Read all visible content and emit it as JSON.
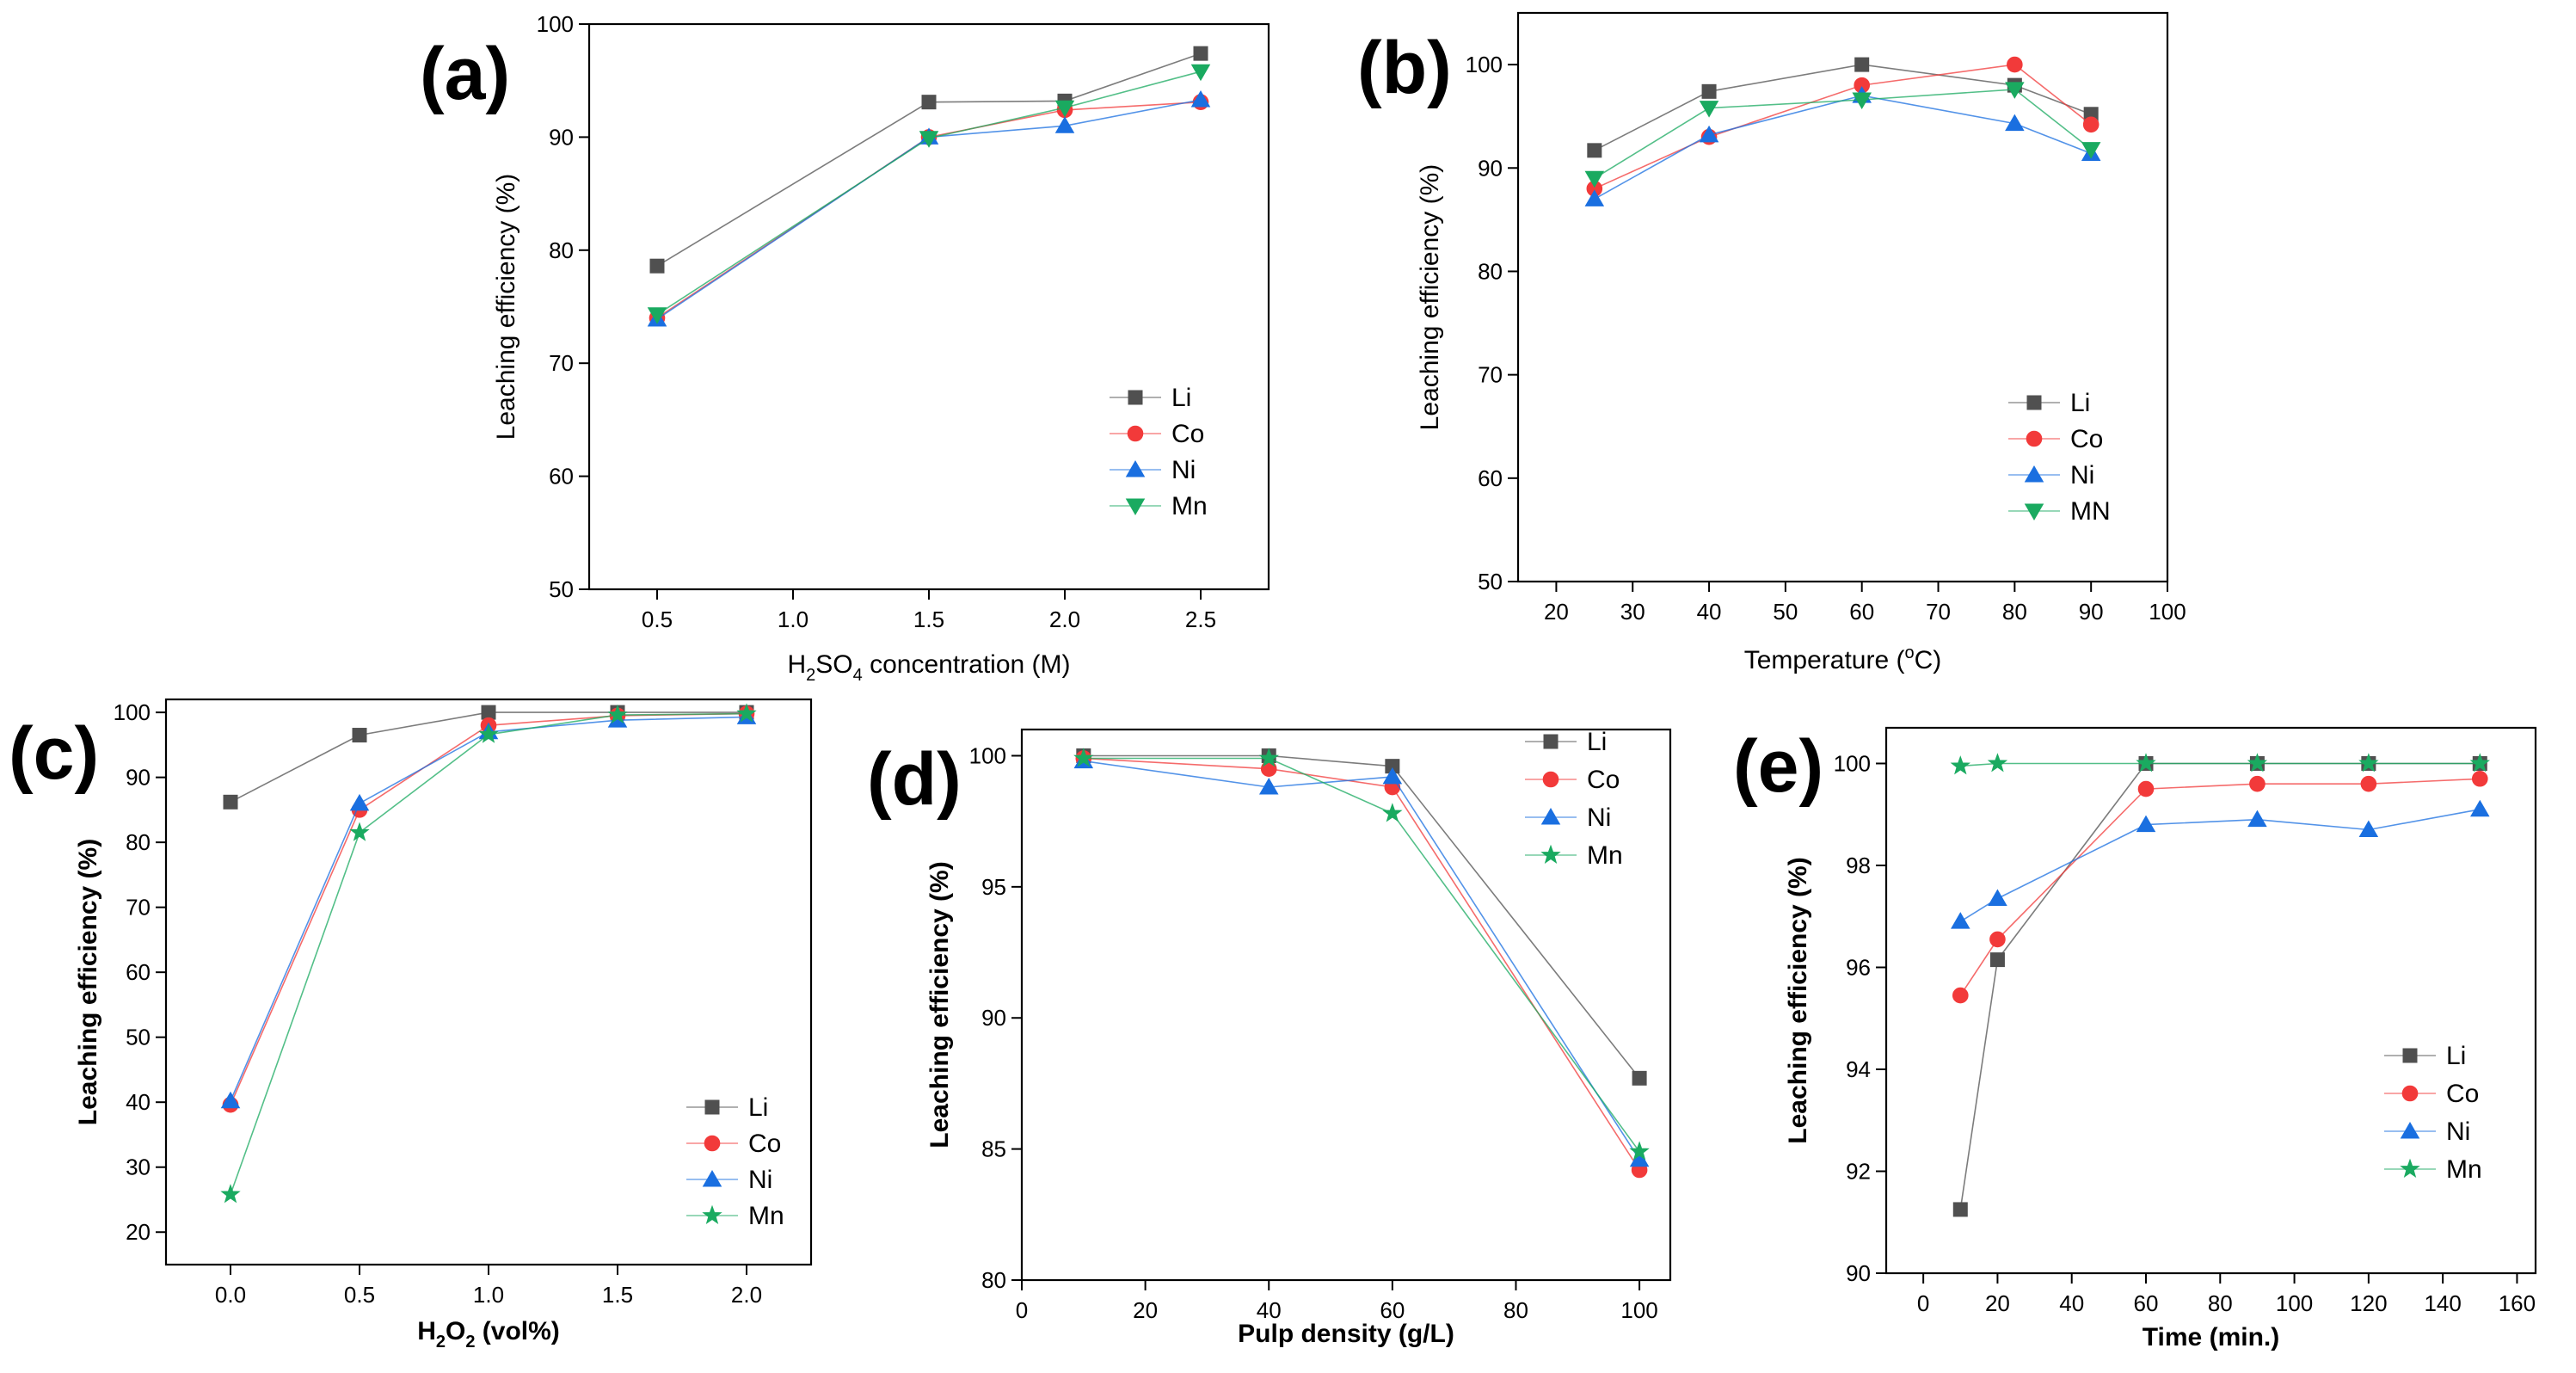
{
  "figure": {
    "title": ""
  },
  "colors": {
    "Li": "#505050",
    "Co": "#f23a3a",
    "Ni": "#1a6fe0",
    "Mn": "#1aaa60"
  },
  "chart_data": [
    {
      "type": "line",
      "panel_label": "(a)",
      "xlabel": "H2SO4 concentration (M)",
      "xlabel_parts": {
        "pre": "H",
        "sub1": "2",
        "mid": "SO",
        "sub2": "4",
        "post": " concentration (M)"
      },
      "ylabel": "Leaching efficiency (%)",
      "xlim": [
        0.25,
        2.75
      ],
      "ylim": [
        50,
        100
      ],
      "xticks": [
        0.5,
        1.0,
        1.5,
        2.0,
        2.5
      ],
      "xtick_labels": [
        "0.5",
        "1.0",
        "1.5",
        "2.0",
        "2.5"
      ],
      "yticks": [
        50,
        60,
        70,
        80,
        90,
        100
      ],
      "ytick_labels": [
        "50",
        "60",
        "70",
        "80",
        "90",
        "100"
      ],
      "legend_position": "lower-right",
      "x": [
        0.5,
        1.5,
        2.0,
        2.5
      ],
      "series": [
        {
          "name": "Li",
          "marker": "square",
          "values": [
            78.6,
            93.1,
            93.2,
            97.4
          ]
        },
        {
          "name": "Co",
          "marker": "circle",
          "values": [
            74.0,
            90.0,
            92.4,
            93.1
          ]
        },
        {
          "name": "Ni",
          "marker": "triangle",
          "values": [
            73.9,
            90.0,
            91.0,
            93.3
          ]
        },
        {
          "name": "Mn",
          "marker": "triangle-down",
          "values": [
            74.3,
            89.9,
            92.6,
            95.8
          ]
        }
      ]
    },
    {
      "type": "line",
      "panel_label": "(b)",
      "xlabel": "Temperature (oC)",
      "xlabel_parts": {
        "pre": "Temperature (",
        "sup": "o",
        "post": "C)"
      },
      "ylabel": "Leaching efficiency (%)",
      "xlim": [
        15,
        100
      ],
      "ylim": [
        50,
        105
      ],
      "xticks": [
        20,
        30,
        40,
        50,
        60,
        70,
        80,
        90,
        100
      ],
      "xtick_labels": [
        "20",
        "30",
        "40",
        "50",
        "60",
        "70",
        "80",
        "90",
        "100"
      ],
      "yticks": [
        50,
        60,
        70,
        80,
        90,
        100
      ],
      "ytick_labels": [
        "50",
        "60",
        "70",
        "80",
        "90",
        "100"
      ],
      "legend_position": "lower-right",
      "x": [
        25,
        40,
        60,
        80,
        90
      ],
      "series": [
        {
          "name": "Li",
          "marker": "square",
          "values": [
            91.7,
            97.4,
            100.0,
            98.0,
            95.2
          ]
        },
        {
          "name": "Co",
          "marker": "circle",
          "values": [
            88.0,
            93.0,
            98.0,
            100.0,
            94.2
          ]
        },
        {
          "name": "Ni",
          "marker": "triangle",
          "values": [
            87.0,
            93.2,
            97.0,
            94.3,
            91.4
          ]
        },
        {
          "name": "MN",
          "marker": "triangle-down",
          "values": [
            89.0,
            95.8,
            96.6,
            97.6,
            91.8
          ]
        }
      ]
    },
    {
      "type": "line",
      "panel_label": "(c)",
      "xlabel": "H2O2 (vol%)",
      "xlabel_parts": {
        "pre": "H",
        "sub1": "2",
        "mid": "O",
        "sub2": "2",
        "post": " (vol%)"
      },
      "ylabel": "Leaching efficiency (%)",
      "bold_labels": true,
      "xlim": [
        -0.25,
        2.25
      ],
      "ylim": [
        15,
        102
      ],
      "xticks": [
        0.0,
        0.5,
        1.0,
        1.5,
        2.0
      ],
      "xtick_labels": [
        "0.0",
        "0.5",
        "1.0",
        "1.5",
        "2.0"
      ],
      "yticks": [
        20,
        30,
        40,
        50,
        60,
        70,
        80,
        90,
        100
      ],
      "ytick_labels": [
        "20",
        "30",
        "40",
        "50",
        "60",
        "70",
        "80",
        "90",
        "100"
      ],
      "legend_position": "lower-right",
      "x": [
        0.0,
        0.5,
        1.0,
        1.5,
        2.0
      ],
      "series": [
        {
          "name": "Li",
          "marker": "square",
          "values": [
            86.2,
            96.5,
            100.0,
            100.0,
            100.0
          ]
        },
        {
          "name": "Co",
          "marker": "circle",
          "values": [
            39.6,
            85.0,
            98.0,
            99.5,
            99.8
          ]
        },
        {
          "name": "Ni",
          "marker": "triangle",
          "values": [
            40.2,
            86.0,
            97.0,
            98.8,
            99.3
          ]
        },
        {
          "name": "Mn",
          "marker": "star",
          "values": [
            25.8,
            81.5,
            96.6,
            99.6,
            99.8
          ]
        }
      ]
    },
    {
      "type": "line",
      "panel_label": "(d)",
      "xlabel": "Pulp density (g/L)",
      "ylabel": "Leaching efficiency (%)",
      "bold_labels": true,
      "xlim": [
        0,
        105
      ],
      "ylim": [
        80,
        101
      ],
      "xticks": [
        0,
        20,
        40,
        60,
        80,
        100
      ],
      "xtick_labels": [
        "0",
        "20",
        "40",
        "60",
        "80",
        "100"
      ],
      "yticks": [
        80,
        85,
        90,
        95,
        100
      ],
      "ytick_labels": [
        "80",
        "85",
        "90",
        "95",
        "100"
      ],
      "legend_position": "upper-right",
      "x": [
        10,
        40,
        60,
        100
      ],
      "series": [
        {
          "name": "Li",
          "marker": "square",
          "values": [
            100.0,
            100.0,
            99.6,
            87.7
          ]
        },
        {
          "name": "Co",
          "marker": "circle",
          "values": [
            99.9,
            99.5,
            98.8,
            84.2
          ]
        },
        {
          "name": "Ni",
          "marker": "triangle",
          "values": [
            99.8,
            98.8,
            99.2,
            84.6
          ]
        },
        {
          "name": "Mn",
          "marker": "star",
          "values": [
            99.9,
            99.9,
            97.8,
            84.9
          ]
        }
      ]
    },
    {
      "type": "line",
      "panel_label": "(e)",
      "xlabel": "Time (min.)",
      "ylabel": "Leaching efficiency (%)",
      "bold_labels": true,
      "xlim": [
        -10,
        165
      ],
      "ylim": [
        90,
        100.7
      ],
      "xticks": [
        0,
        20,
        40,
        60,
        80,
        100,
        120,
        140,
        160
      ],
      "xtick_labels": [
        "0",
        "20",
        "40",
        "60",
        "80",
        "100",
        "120",
        "140",
        "160"
      ],
      "yticks": [
        90,
        92,
        94,
        96,
        98,
        100
      ],
      "ytick_labels": [
        "90",
        "92",
        "94",
        "96",
        "98",
        "100"
      ],
      "legend_position": "lower-right",
      "x": [
        10,
        20,
        60,
        90,
        120,
        150
      ],
      "series": [
        {
          "name": "Li",
          "marker": "square",
          "values": [
            91.25,
            96.15,
            100.0,
            100.0,
            100.0,
            100.0
          ]
        },
        {
          "name": "Co",
          "marker": "circle",
          "values": [
            95.45,
            96.55,
            99.5,
            99.6,
            99.6,
            99.7
          ]
        },
        {
          "name": "Ni",
          "marker": "triangle",
          "values": [
            96.9,
            97.35,
            98.8,
            98.9,
            98.7,
            99.1
          ]
        },
        {
          "name": "Mn",
          "marker": "star",
          "values": [
            99.95,
            100.0,
            100.0,
            100.0,
            100.0,
            100.0
          ]
        }
      ]
    }
  ]
}
